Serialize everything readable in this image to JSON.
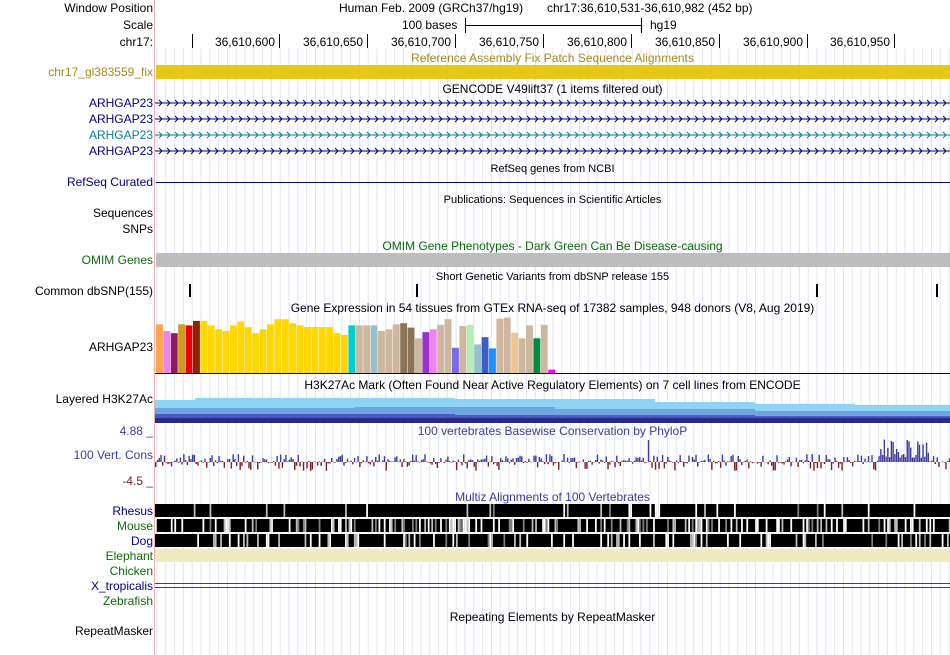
{
  "header": {
    "window_position_label": "Window Position",
    "scale_label": "Scale",
    "chrom_label": "chr17:",
    "assembly": "Human Feb. 2009 (GRCh37/hg19)",
    "position": "chr17:36,610,531-36,610,982 (452 bp)",
    "scale_text": "100 bases",
    "db": "hg19",
    "ruler_ticks": [
      "36,610,600",
      "36,610,650",
      "36,610,700",
      "36,610,750",
      "36,610,800",
      "36,610,850",
      "36,610,900",
      "36,610,950"
    ]
  },
  "tracks": {
    "fix_patch": {
      "label": "chr17_gl383559_fix",
      "title": "Reference Assembly Fix Patch Sequence Alignments",
      "color": "#e6c817"
    },
    "gencode": {
      "title": "GENCODE V49lift37 (1 items filtered out)",
      "items": [
        "ARHGAP23",
        "ARHGAP23",
        "ARHGAP23",
        "ARHGAP23"
      ]
    },
    "refseq": {
      "label": "RefSeq Curated",
      "title": "RefSeq genes from NCBI"
    },
    "publications": {
      "title": "Publications: Sequences in Scientific Articles",
      "labels": [
        "Sequences",
        "SNPs"
      ]
    },
    "omim": {
      "label": "OMIM Genes",
      "title": "OMIM Gene Phenotypes - Dark Green Can Be Disease-causing"
    },
    "dbsnp": {
      "label": "Common dbSNP(155)",
      "title": "Short Genetic Variants from dbSNP release 155"
    },
    "gtex": {
      "label": "ARHGAP23",
      "title": "Gene Expression in 54 tissues from GTEx RNA-seq of 17382 samples, 948 donors (V8, Aug 2019)",
      "values": [
        0.87,
        0.75,
        0.71,
        0.87,
        0.85,
        0.93,
        0.93,
        0.85,
        0.78,
        0.75,
        0.85,
        0.92,
        0.82,
        0.71,
        0.78,
        0.87,
        0.96,
        0.96,
        0.89,
        0.85,
        0.82,
        0.82,
        0.82,
        0.82,
        0.71,
        0.68,
        0.85,
        0.85,
        0.85,
        0.85,
        0.75,
        0.78,
        0.87,
        0.89,
        0.81,
        0.62,
        0.73,
        0.78,
        0.86,
        0.96,
        0.45,
        0.84,
        0.86,
        0.51,
        0.64,
        0.44,
        0.97,
        0.99,
        0.72,
        0.62,
        0.85,
        0.62,
        0.86,
        0.06
      ],
      "colors": [
        "#ffa54f",
        "#ee82ee",
        "#8b1c62",
        "#cd9b1d",
        "#ee0000",
        "#8b2500",
        "#ffd700",
        "#ffd700",
        "#ffd700",
        "#ffd700",
        "#ffd700",
        "#ffd700",
        "#ffd700",
        "#ffd700",
        "#ffd700",
        "#ffd700",
        "#ffd700",
        "#ffd700",
        "#ffd700",
        "#ffd700",
        "#ffd700",
        "#ffd700",
        "#ffd700",
        "#ffd700",
        "#ffd700",
        "#ffd700",
        "#00cdcd",
        "#cdb79e",
        "#cdb79e",
        "#9ac0cd",
        "#cdb79e",
        "#cdb79e",
        "#cdb79e",
        "#8b7355",
        "#8b7355",
        "#cdb79e",
        "#9a32cd",
        "#ee82ee",
        "#cdb79e",
        "#cdb79e",
        "#7a67ee",
        "#cdb79e",
        "#b4eeb4",
        "#9ac0cd",
        "#3a5fcd",
        "#1e90ff",
        "#cdb79e",
        "#cdb79e",
        "#eec591",
        "#cdb79e",
        "#cdb79e",
        "#008b45",
        "#cdb79e",
        "#ff00ff"
      ]
    },
    "h3k27ac": {
      "label": "Layered H3K27Ac",
      "title": "H3K27Ac Mark (Often Found Near Active Regulatory Elements) on 7 cell lines from ENCODE"
    },
    "phylop": {
      "label": "100 Vert. Cons",
      "max_label": "4.88 _",
      "min_label": "-4.5 _",
      "title": "100 vertebrates Basewise Conservation by PhyloP",
      "pos_color": "#3b3b9e",
      "neg_color": "#7a2020"
    },
    "multiz": {
      "title": "Multiz Alignments of 100 Vertebrates",
      "species": [
        "Rhesus",
        "Mouse",
        "Dog",
        "Elephant",
        "Chicken",
        "X_tropicalis",
        "Zebrafish"
      ]
    },
    "repeatmasker": {
      "label": "RepeatMasker",
      "title": "Repeating Elements by RepeatMasker"
    }
  }
}
